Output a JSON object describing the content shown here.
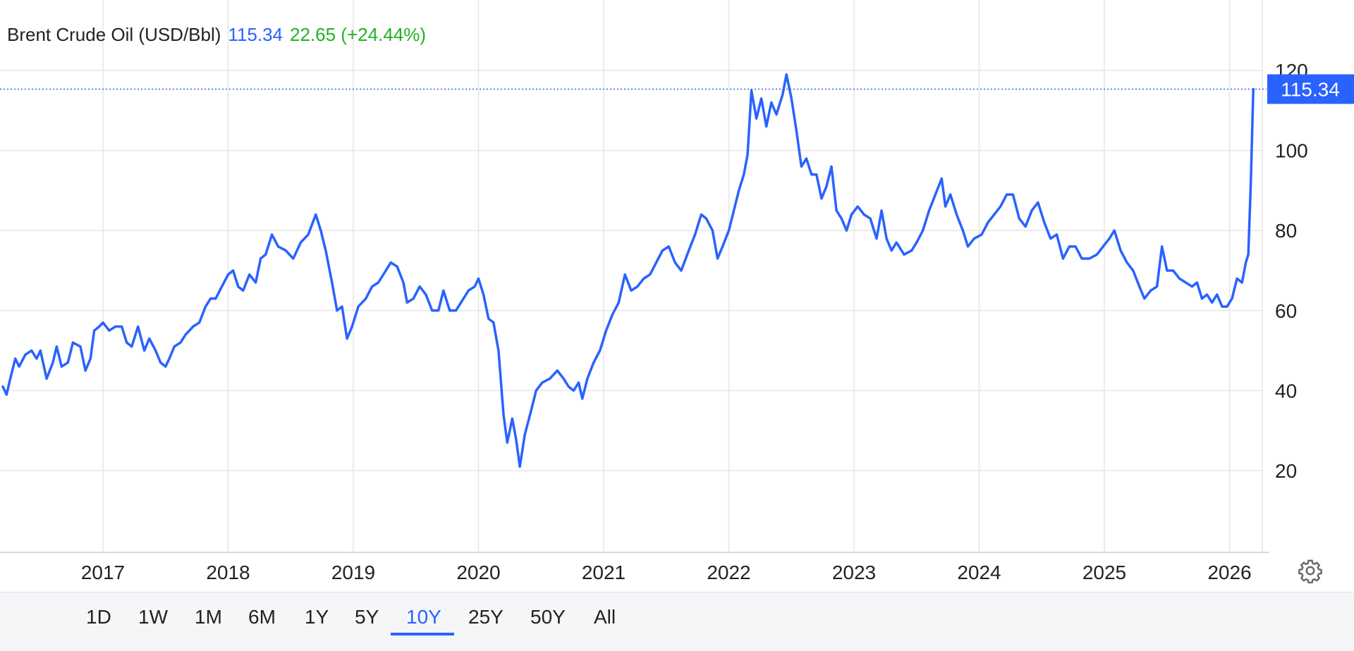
{
  "header": {
    "name": "Brent Crude Oil (USD/Bbl)",
    "price": "115.34",
    "change": "22.65 (+24.44%)"
  },
  "price_label": "115.34",
  "range_buttons": [
    "1D",
    "1W",
    "1M",
    "6M",
    "1Y",
    "5Y",
    "10Y",
    "25Y",
    "50Y",
    "All"
  ],
  "active_range": "10Y",
  "colors": {
    "line": "#2962ff",
    "grid": "#e6e6e6",
    "text": "#222222",
    "positive": "#22b222"
  },
  "settings_icon": "gear-icon",
  "chart_data": {
    "type": "line",
    "title": "Brent Crude Oil (USD/Bbl)",
    "xlabel": "",
    "ylabel": "",
    "grid": true,
    "ylim": [
      0,
      126
    ],
    "xlim": [
      2016.2,
      2026.2
    ],
    "y_ticks": [
      20,
      40,
      60,
      80,
      100,
      120
    ],
    "x_ticks": [
      "2017",
      "2018",
      "2019",
      "2020",
      "2021",
      "2022",
      "2023",
      "2024",
      "2025",
      "2026"
    ],
    "last_value": 115.34,
    "series": [
      {
        "values": [
          [
            2016.2,
            41
          ],
          [
            2016.23,
            39
          ],
          [
            2016.26,
            43
          ],
          [
            2016.3,
            48
          ],
          [
            2016.33,
            46
          ],
          [
            2016.38,
            49
          ],
          [
            2016.43,
            50
          ],
          [
            2016.47,
            48
          ],
          [
            2016.5,
            50
          ],
          [
            2016.55,
            43
          ],
          [
            2016.6,
            47
          ],
          [
            2016.63,
            51
          ],
          [
            2016.67,
            46
          ],
          [
            2016.72,
            47
          ],
          [
            2016.76,
            52
          ],
          [
            2016.82,
            51
          ],
          [
            2016.86,
            45
          ],
          [
            2016.9,
            48
          ],
          [
            2016.93,
            55
          ],
          [
            2016.97,
            56
          ],
          [
            2017.0,
            57
          ],
          [
            2017.05,
            55
          ],
          [
            2017.1,
            56
          ],
          [
            2017.15,
            56
          ],
          [
            2017.19,
            52
          ],
          [
            2017.23,
            51
          ],
          [
            2017.28,
            56
          ],
          [
            2017.33,
            50
          ],
          [
            2017.37,
            53
          ],
          [
            2017.42,
            50
          ],
          [
            2017.46,
            47
          ],
          [
            2017.5,
            46
          ],
          [
            2017.53,
            48
          ],
          [
            2017.57,
            51
          ],
          [
            2017.62,
            52
          ],
          [
            2017.66,
            54
          ],
          [
            2017.72,
            56
          ],
          [
            2017.77,
            57
          ],
          [
            2017.82,
            61
          ],
          [
            2017.86,
            63
          ],
          [
            2017.9,
            63
          ],
          [
            2017.95,
            66
          ],
          [
            2018.0,
            69
          ],
          [
            2018.04,
            70
          ],
          [
            2018.08,
            66
          ],
          [
            2018.12,
            65
          ],
          [
            2018.17,
            69
          ],
          [
            2018.22,
            67
          ],
          [
            2018.26,
            73
          ],
          [
            2018.3,
            74
          ],
          [
            2018.35,
            79
          ],
          [
            2018.4,
            76
          ],
          [
            2018.46,
            75
          ],
          [
            2018.52,
            73
          ],
          [
            2018.58,
            77
          ],
          [
            2018.64,
            79
          ],
          [
            2018.7,
            84
          ],
          [
            2018.74,
            80
          ],
          [
            2018.78,
            75
          ],
          [
            2018.83,
            67
          ],
          [
            2018.87,
            60
          ],
          [
            2018.91,
            61
          ],
          [
            2018.95,
            53
          ],
          [
            2018.99,
            56
          ],
          [
            2019.04,
            61
          ],
          [
            2019.1,
            63
          ],
          [
            2019.15,
            66
          ],
          [
            2019.2,
            67
          ],
          [
            2019.26,
            70
          ],
          [
            2019.3,
            72
          ],
          [
            2019.35,
            71
          ],
          [
            2019.4,
            67
          ],
          [
            2019.43,
            62
          ],
          [
            2019.48,
            63
          ],
          [
            2019.53,
            66
          ],
          [
            2019.58,
            64
          ],
          [
            2019.63,
            60
          ],
          [
            2019.68,
            60
          ],
          [
            2019.72,
            65
          ],
          [
            2019.77,
            60
          ],
          [
            2019.82,
            60
          ],
          [
            2019.88,
            63
          ],
          [
            2019.92,
            65
          ],
          [
            2019.97,
            66
          ],
          [
            2020.0,
            68
          ],
          [
            2020.04,
            64
          ],
          [
            2020.08,
            58
          ],
          [
            2020.12,
            57
          ],
          [
            2020.16,
            50
          ],
          [
            2020.2,
            34
          ],
          [
            2020.23,
            27
          ],
          [
            2020.27,
            33
          ],
          [
            2020.3,
            28
          ],
          [
            2020.33,
            21
          ],
          [
            2020.37,
            29
          ],
          [
            2020.42,
            35
          ],
          [
            2020.46,
            40
          ],
          [
            2020.51,
            42
          ],
          [
            2020.57,
            43
          ],
          [
            2020.63,
            45
          ],
          [
            2020.68,
            43
          ],
          [
            2020.72,
            41
          ],
          [
            2020.76,
            40
          ],
          [
            2020.8,
            42
          ],
          [
            2020.83,
            38
          ],
          [
            2020.87,
            43
          ],
          [
            2020.92,
            47
          ],
          [
            2020.97,
            50
          ],
          [
            2021.02,
            55
          ],
          [
            2021.07,
            59
          ],
          [
            2021.12,
            62
          ],
          [
            2021.17,
            69
          ],
          [
            2021.22,
            65
          ],
          [
            2021.27,
            66
          ],
          [
            2021.32,
            68
          ],
          [
            2021.37,
            69
          ],
          [
            2021.42,
            72
          ],
          [
            2021.47,
            75
          ],
          [
            2021.52,
            76
          ],
          [
            2021.57,
            72
          ],
          [
            2021.62,
            70
          ],
          [
            2021.68,
            75
          ],
          [
            2021.73,
            79
          ],
          [
            2021.78,
            84
          ],
          [
            2021.82,
            83
          ],
          [
            2021.87,
            80
          ],
          [
            2021.91,
            73
          ],
          [
            2021.95,
            76
          ],
          [
            2022.0,
            80
          ],
          [
            2022.04,
            85
          ],
          [
            2022.08,
            90
          ],
          [
            2022.12,
            94
          ],
          [
            2022.15,
            99
          ],
          [
            2022.18,
            115
          ],
          [
            2022.22,
            108
          ],
          [
            2022.26,
            113
          ],
          [
            2022.3,
            106
          ],
          [
            2022.34,
            112
          ],
          [
            2022.38,
            109
          ],
          [
            2022.43,
            114
          ],
          [
            2022.46,
            119
          ],
          [
            2022.5,
            113
          ],
          [
            2022.54,
            105
          ],
          [
            2022.58,
            96
          ],
          [
            2022.62,
            98
          ],
          [
            2022.66,
            94
          ],
          [
            2022.7,
            94
          ],
          [
            2022.74,
            88
          ],
          [
            2022.78,
            91
          ],
          [
            2022.82,
            96
          ],
          [
            2022.86,
            85
          ],
          [
            2022.9,
            83
          ],
          [
            2022.94,
            80
          ],
          [
            2022.98,
            84
          ],
          [
            2023.03,
            86
          ],
          [
            2023.08,
            84
          ],
          [
            2023.13,
            83
          ],
          [
            2023.18,
            78
          ],
          [
            2023.22,
            85
          ],
          [
            2023.26,
            78
          ],
          [
            2023.3,
            75
          ],
          [
            2023.34,
            77
          ],
          [
            2023.4,
            74
          ],
          [
            2023.46,
            75
          ],
          [
            2023.5,
            77
          ],
          [
            2023.55,
            80
          ],
          [
            2023.6,
            85
          ],
          [
            2023.65,
            89
          ],
          [
            2023.7,
            93
          ],
          [
            2023.73,
            86
          ],
          [
            2023.77,
            89
          ],
          [
            2023.82,
            84
          ],
          [
            2023.87,
            80
          ],
          [
            2023.91,
            76
          ],
          [
            2023.96,
            78
          ],
          [
            2024.02,
            79
          ],
          [
            2024.07,
            82
          ],
          [
            2024.12,
            84
          ],
          [
            2024.17,
            86
          ],
          [
            2024.22,
            89
          ],
          [
            2024.27,
            89
          ],
          [
            2024.32,
            83
          ],
          [
            2024.37,
            81
          ],
          [
            2024.42,
            85
          ],
          [
            2024.47,
            87
          ],
          [
            2024.52,
            82
          ],
          [
            2024.57,
            78
          ],
          [
            2024.62,
            79
          ],
          [
            2024.67,
            73
          ],
          [
            2024.72,
            76
          ],
          [
            2024.77,
            76
          ],
          [
            2024.82,
            73
          ],
          [
            2024.88,
            73
          ],
          [
            2024.94,
            74
          ],
          [
            2024.99,
            76
          ],
          [
            2025.04,
            78
          ],
          [
            2025.08,
            80
          ],
          [
            2025.13,
            75
          ],
          [
            2025.18,
            72
          ],
          [
            2025.23,
            70
          ],
          [
            2025.28,
            66
          ],
          [
            2025.32,
            63
          ],
          [
            2025.37,
            65
          ],
          [
            2025.42,
            66
          ],
          [
            2025.46,
            76
          ],
          [
            2025.5,
            70
          ],
          [
            2025.55,
            70
          ],
          [
            2025.6,
            68
          ],
          [
            2025.65,
            67
          ],
          [
            2025.7,
            66
          ],
          [
            2025.74,
            67
          ],
          [
            2025.78,
            63
          ],
          [
            2025.82,
            64
          ],
          [
            2025.86,
            62
          ],
          [
            2025.9,
            64
          ],
          [
            2025.94,
            61
          ],
          [
            2025.98,
            61
          ],
          [
            2026.02,
            63
          ],
          [
            2026.06,
            68
          ],
          [
            2026.1,
            67
          ],
          [
            2026.13,
            72
          ],
          [
            2026.15,
            74
          ],
          [
            2026.17,
            92
          ],
          [
            2026.19,
            115.34
          ]
        ]
      }
    ]
  }
}
